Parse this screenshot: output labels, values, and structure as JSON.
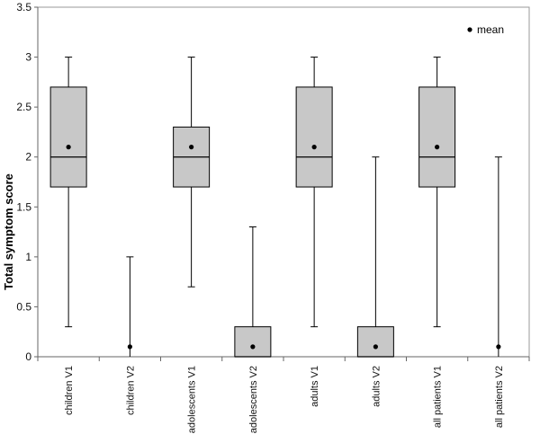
{
  "chart_data": {
    "type": "boxplot",
    "ylabel": "Total symptom score",
    "ylim": [
      0,
      3.5
    ],
    "yticks": [
      "0",
      "0.5",
      "1",
      "1.5",
      "2",
      "2.5",
      "3",
      "3.5"
    ],
    "grid": false,
    "legend": {
      "label": "mean",
      "position": "top-right"
    },
    "categories": [
      "children V1",
      "children V2",
      "adolescents V1",
      "adolescents V2",
      "adults V1",
      "adults V2",
      "all patients V1",
      "all patients V2"
    ],
    "series": [
      {
        "min": 0.3,
        "q1": 1.7,
        "median": 2.0,
        "q3": 2.7,
        "max": 3.0,
        "mean": 2.1
      },
      {
        "min": 0.0,
        "q1": 0.0,
        "median": 0.0,
        "q3": 0.0,
        "max": 1.0,
        "mean": 0.1
      },
      {
        "min": 0.7,
        "q1": 1.7,
        "median": 2.0,
        "q3": 2.3,
        "max": 3.0,
        "mean": 2.1
      },
      {
        "min": 0.0,
        "q1": 0.0,
        "median": 0.0,
        "q3": 0.3,
        "max": 1.3,
        "mean": 0.1
      },
      {
        "min": 0.3,
        "q1": 1.7,
        "median": 2.0,
        "q3": 2.7,
        "max": 3.0,
        "mean": 2.1
      },
      {
        "min": 0.0,
        "q1": 0.0,
        "median": 0.0,
        "q3": 0.3,
        "max": 2.0,
        "mean": 0.1
      },
      {
        "min": 0.3,
        "q1": 1.7,
        "median": 2.0,
        "q3": 2.7,
        "max": 3.0,
        "mean": 2.1
      },
      {
        "min": 0.0,
        "q1": 0.0,
        "median": 0.0,
        "q3": 0.0,
        "max": 2.0,
        "mean": 0.1
      }
    ],
    "colors": {
      "box_fill": "#c8c8c8",
      "stroke": "#000000",
      "mean_marker": "#000000"
    }
  }
}
